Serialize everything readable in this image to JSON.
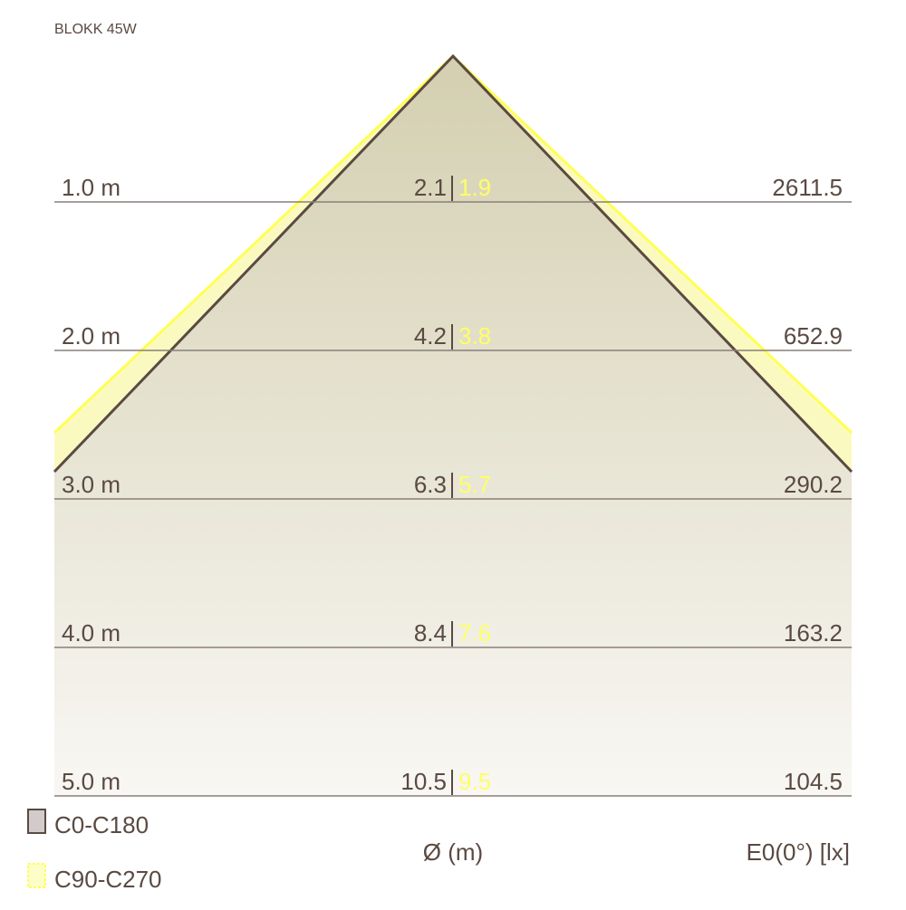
{
  "title": "BLOKK 45W",
  "rows": [
    {
      "distance": "1.0 m",
      "c0": "2.1",
      "c90": "1.9",
      "lux": "2611.5"
    },
    {
      "distance": "2.0 m",
      "c0": "4.2",
      "c90": "3.8",
      "lux": "652.9"
    },
    {
      "distance": "3.0 m",
      "c0": "6.3",
      "c90": "5.7",
      "lux": "290.2"
    },
    {
      "distance": "4.0 m",
      "c0": "8.4",
      "c90": "7.6",
      "lux": "163.2"
    },
    {
      "distance": "5.0 m",
      "c0": "10.5",
      "c90": "9.5",
      "lux": "104.5"
    }
  ],
  "legend": [
    "C0-C180",
    "C90-C270"
  ],
  "diameter_label": "Ø (m)",
  "illuminance_label": "E0(0°) [lx]"
}
